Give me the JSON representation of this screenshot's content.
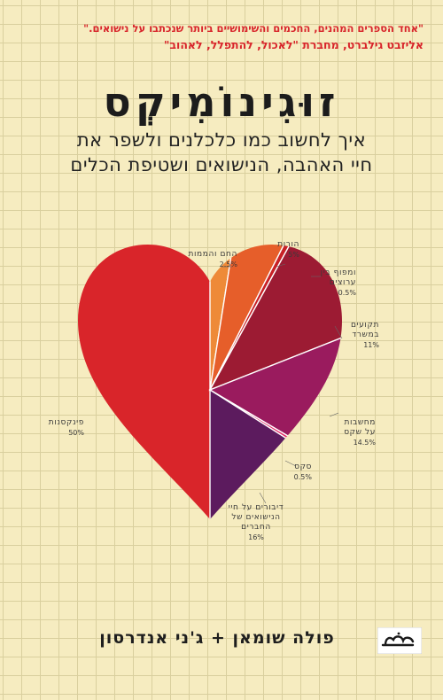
{
  "cover": {
    "blurb_line1": "\"אחד הספרים המהנים, החכמים והשימושיים ביותר שנכתבו על נישואים.\"",
    "blurb_line2": "אליזבט גילברט, מחברת \"לאכול, להתפלל, לאהוב\"",
    "title": "זוּגִינוֹמִיקְס",
    "subtitle_line1": "איך לחשוב כמו כלכלנים ולשפר את",
    "subtitle_line2": "חיי האהבה, הנישואים ושטיפת הכלים",
    "authors": "פולה שומאן + ג'ני אנדרסון",
    "publisher_logo_icon": "matar-logo-icon"
  },
  "chart_data": {
    "type": "pie",
    "slices": [
      {
        "label": "פינקסנות",
        "percent_text": "50%",
        "value": 50,
        "color": "#d9252a"
      },
      {
        "label": "החם והממות",
        "percent_text": "2.5%",
        "value": 2.5,
        "color": "#ee8a38"
      },
      {
        "label": "הורות",
        "percent_text": "5%",
        "value": 5,
        "color": "#e65e2a"
      },
      {
        "label": "ומפוף בין ערוצים",
        "percent_text": "0.5%",
        "value": 0.5,
        "color": "#c82126"
      },
      {
        "label": "תקועים במשרד",
        "percent_text": "11%",
        "value": 11,
        "color": "#9c1b33"
      },
      {
        "label": "מחשבות על שקס",
        "percent_text": "14.5%",
        "value": 14.5,
        "color": "#9a1b5e"
      },
      {
        "label": "סקס",
        "percent_text": "0.5%",
        "value": 0.5,
        "color": "#e42f6b"
      },
      {
        "label": "דיבורים על חיי הנישואים של החברים",
        "percent_text": "16%",
        "value": 16,
        "color": "#5c1b5e"
      }
    ]
  }
}
